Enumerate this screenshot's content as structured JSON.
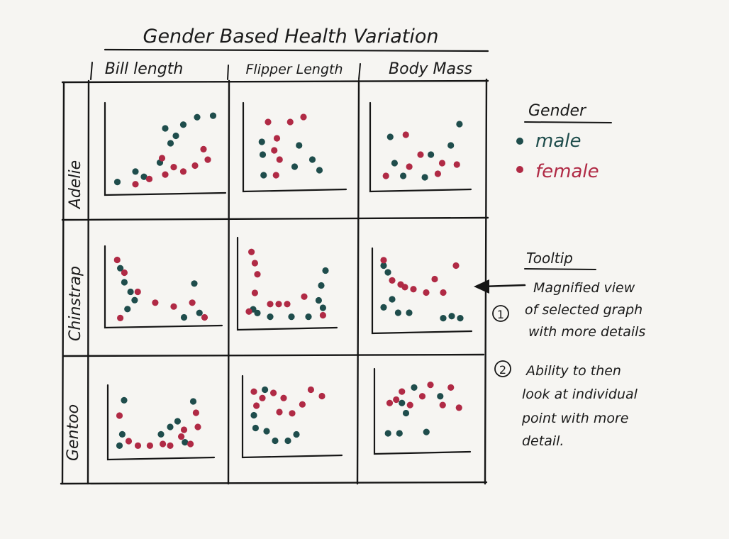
{
  "title": "Gender Based Health Variation",
  "columns": [
    "Bill length",
    "Flipper Length",
    "Body Mass"
  ],
  "rows": [
    "Adelie",
    "Chinstrap",
    "Gentoo"
  ],
  "legend": {
    "title": "Gender",
    "items": [
      {
        "label": "male",
        "color": "#1f4d4c"
      },
      {
        "label": "female",
        "color": "#b02a45"
      }
    ]
  },
  "tooltip_note": {
    "title": "Tooltip",
    "items": [
      {
        "num": "1",
        "lines": [
          "Magnified view",
          "of selected graph",
          "with more details"
        ]
      },
      {
        "num": "2",
        "lines": [
          "Ability to then",
          "look at individual",
          "point with more",
          "detail."
        ]
      }
    ]
  },
  "colors": {
    "ink": "#161616",
    "male": "#1f4d4c",
    "female": "#b02a45",
    "paper": "#f6f5f2"
  }
}
